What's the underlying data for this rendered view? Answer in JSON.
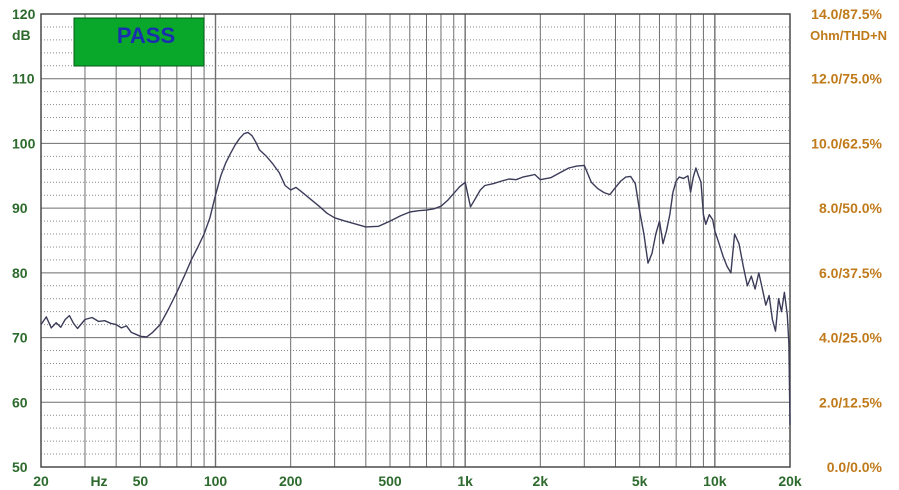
{
  "chart_data": {
    "type": "line",
    "x_scale": "log",
    "xlim": [
      20,
      20000
    ],
    "ylim": [
      50,
      120
    ],
    "y_ticks": [
      50,
      60,
      70,
      80,
      90,
      100,
      110,
      120
    ],
    "y_unit": "dB",
    "x_ticks": [
      {
        "value": 20,
        "label": "20"
      },
      {
        "value": 50,
        "label": "50"
      },
      {
        "value": 100,
        "label": "100"
      },
      {
        "value": 200,
        "label": "200"
      },
      {
        "value": 500,
        "label": "500"
      },
      {
        "value": 1000,
        "label": "1k"
      },
      {
        "value": 2000,
        "label": "2k"
      },
      {
        "value": 5000,
        "label": "5k"
      },
      {
        "value": 10000,
        "label": "10k"
      },
      {
        "value": 20000,
        "label": "20k"
      }
    ],
    "x_unit": "Hz",
    "right_axis": {
      "unit": "Ohm/THD+N",
      "ticks": [
        {
          "value": 0,
          "label": "0.0/0.0%"
        },
        {
          "value": 2,
          "label": "2.0/12.5%"
        },
        {
          "value": 4,
          "label": "4.0/25.0%"
        },
        {
          "value": 6,
          "label": "6.0/37.5%"
        },
        {
          "value": 8,
          "label": "8.0/50.0%"
        },
        {
          "value": 10,
          "label": "10.0/62.5%"
        },
        {
          "value": 12,
          "label": "12.0/75.0%"
        },
        {
          "value": 14,
          "label": "14.0/87.5%"
        }
      ],
      "range": [
        0,
        14
      ]
    },
    "grid": true,
    "badge": {
      "text": "PASS",
      "color": "#0aa82a",
      "text_color": "#1a2fb0"
    },
    "colors": {
      "line": "#3c3c5a",
      "grid": "#6e6e6e",
      "left_text": "#2d6a2d",
      "right_text": "#c07a1a"
    },
    "series": [
      {
        "points": [
          [
            20,
            72.0
          ],
          [
            21,
            73.2
          ],
          [
            22,
            71.5
          ],
          [
            23,
            72.3
          ],
          [
            24,
            71.6
          ],
          [
            25,
            72.8
          ],
          [
            26,
            73.4
          ],
          [
            27,
            72.2
          ],
          [
            28,
            71.4
          ],
          [
            30,
            72.8
          ],
          [
            32,
            73.1
          ],
          [
            34,
            72.5
          ],
          [
            36,
            72.6
          ],
          [
            38,
            72.2
          ],
          [
            40,
            72.0
          ],
          [
            42,
            71.5
          ],
          [
            44,
            71.8
          ],
          [
            46,
            70.8
          ],
          [
            48,
            70.5
          ],
          [
            50,
            70.2
          ],
          [
            53,
            70.1
          ],
          [
            56,
            70.8
          ],
          [
            60,
            72.0
          ],
          [
            65,
            74.5
          ],
          [
            70,
            77.0
          ],
          [
            75,
            79.5
          ],
          [
            80,
            82.0
          ],
          [
            85,
            84.0
          ],
          [
            90,
            86.0
          ],
          [
            95,
            88.5
          ],
          [
            100,
            92.0
          ],
          [
            105,
            95.0
          ],
          [
            110,
            97.0
          ],
          [
            115,
            98.5
          ],
          [
            120,
            99.8
          ],
          [
            125,
            100.8
          ],
          [
            130,
            101.5
          ],
          [
            135,
            101.7
          ],
          [
            140,
            101.2
          ],
          [
            145,
            100.2
          ],
          [
            150,
            99.0
          ],
          [
            160,
            98.0
          ],
          [
            170,
            96.8
          ],
          [
            180,
            95.5
          ],
          [
            190,
            93.5
          ],
          [
            200,
            92.8
          ],
          [
            210,
            93.2
          ],
          [
            220,
            92.6
          ],
          [
            240,
            91.4
          ],
          [
            260,
            90.3
          ],
          [
            280,
            89.2
          ],
          [
            300,
            88.5
          ],
          [
            330,
            88.0
          ],
          [
            360,
            87.6
          ],
          [
            400,
            87.1
          ],
          [
            450,
            87.2
          ],
          [
            500,
            88.0
          ],
          [
            550,
            88.8
          ],
          [
            600,
            89.4
          ],
          [
            650,
            89.6
          ],
          [
            700,
            89.7
          ],
          [
            750,
            89.9
          ],
          [
            800,
            90.3
          ],
          [
            850,
            91.2
          ],
          [
            900,
            92.3
          ],
          [
            950,
            93.3
          ],
          [
            1000,
            94.0
          ],
          [
            1050,
            90.2
          ],
          [
            1100,
            91.5
          ],
          [
            1150,
            92.8
          ],
          [
            1200,
            93.5
          ],
          [
            1300,
            93.8
          ],
          [
            1400,
            94.2
          ],
          [
            1500,
            94.5
          ],
          [
            1600,
            94.4
          ],
          [
            1700,
            94.8
          ],
          [
            1800,
            95.0
          ],
          [
            1900,
            95.2
          ],
          [
            2000,
            94.4
          ],
          [
            2200,
            94.7
          ],
          [
            2400,
            95.5
          ],
          [
            2600,
            96.2
          ],
          [
            2800,
            96.5
          ],
          [
            3000,
            96.6
          ],
          [
            3200,
            94.0
          ],
          [
            3400,
            93.0
          ],
          [
            3600,
            92.4
          ],
          [
            3800,
            92.1
          ],
          [
            4000,
            93.2
          ],
          [
            4200,
            94.2
          ],
          [
            4400,
            94.8
          ],
          [
            4600,
            94.9
          ],
          [
            4800,
            93.8
          ],
          [
            5000,
            89.5
          ],
          [
            5200,
            86.0
          ],
          [
            5400,
            81.5
          ],
          [
            5600,
            83.0
          ],
          [
            5800,
            86.0
          ],
          [
            6000,
            88.0
          ],
          [
            6200,
            84.5
          ],
          [
            6400,
            86.5
          ],
          [
            6600,
            89.0
          ],
          [
            6800,
            92.5
          ],
          [
            7000,
            94.2
          ],
          [
            7200,
            94.8
          ],
          [
            7500,
            94.6
          ],
          [
            7800,
            95.0
          ],
          [
            8000,
            92.5
          ],
          [
            8200,
            94.8
          ],
          [
            8400,
            96.2
          ],
          [
            8600,
            95.0
          ],
          [
            8800,
            94.0
          ],
          [
            9000,
            89.0
          ],
          [
            9200,
            87.5
          ],
          [
            9500,
            89.0
          ],
          [
            9800,
            88.2
          ],
          [
            10000,
            86.5
          ],
          [
            10400,
            84.5
          ],
          [
            10800,
            82.5
          ],
          [
            11200,
            81.0
          ],
          [
            11600,
            80.0
          ],
          [
            12000,
            86.0
          ],
          [
            12500,
            84.5
          ],
          [
            13000,
            81.0
          ],
          [
            13500,
            78.0
          ],
          [
            14000,
            79.5
          ],
          [
            14500,
            77.5
          ],
          [
            15000,
            80.0
          ],
          [
            15500,
            77.5
          ],
          [
            16000,
            75.0
          ],
          [
            16500,
            76.5
          ],
          [
            17000,
            72.8
          ],
          [
            17500,
            71.0
          ],
          [
            18000,
            76.0
          ],
          [
            18500,
            74.0
          ],
          [
            19000,
            77.0
          ],
          [
            19500,
            73.5
          ],
          [
            19800,
            69.0
          ],
          [
            20000,
            56.5
          ]
        ]
      }
    ]
  }
}
